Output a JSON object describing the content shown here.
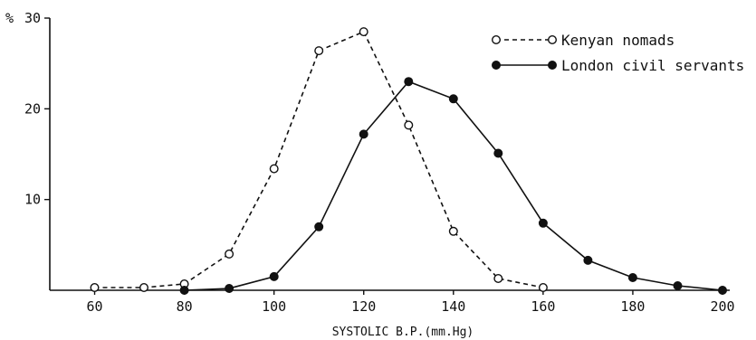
{
  "chart_data": {
    "type": "line",
    "title": "",
    "xlabel": "SYSTOLIC B.P.(mm.Hg)",
    "ylabel": "%",
    "xlim": [
      50,
      200
    ],
    "ylim": [
      0,
      30
    ],
    "x_ticks": [
      "60",
      "80",
      "100",
      "120",
      "140",
      "160",
      "180",
      "200"
    ],
    "y_ticks": [
      "10",
      "20",
      "30"
    ],
    "y_unit_label": "%",
    "grid": false,
    "legend_position": "top-right",
    "series": [
      {
        "name": "Kenyan nomads",
        "style": "dashed",
        "marker": "open-circle",
        "x": [
          60,
          71,
          80,
          90,
          100,
          110,
          120,
          130,
          140,
          150,
          160
        ],
        "y": [
          0.3,
          0.3,
          0.7,
          4.0,
          13.4,
          26.4,
          28.5,
          18.2,
          6.5,
          1.3,
          0.3
        ]
      },
      {
        "name": "London civil servants",
        "style": "solid",
        "marker": "filled-circle",
        "x": [
          80,
          90,
          100,
          110,
          120,
          130,
          140,
          150,
          160,
          170,
          180,
          190,
          200
        ],
        "y": [
          0.0,
          0.2,
          1.5,
          7.0,
          17.2,
          23.0,
          21.1,
          15.1,
          7.4,
          3.3,
          1.4,
          0.5,
          0.0
        ]
      }
    ]
  }
}
